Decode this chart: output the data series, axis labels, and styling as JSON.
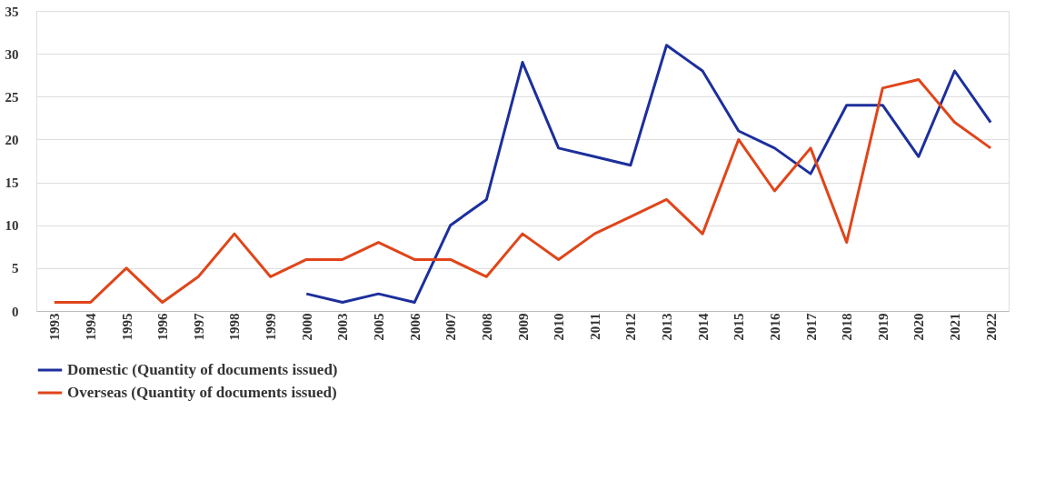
{
  "chart_data": {
    "type": "line",
    "categories": [
      "1993",
      "1994",
      "1995",
      "1996",
      "1997",
      "1998",
      "1999",
      "2000",
      "2003",
      "2005",
      "2006",
      "2007",
      "2008",
      "2009",
      "2010",
      "2011",
      "2012",
      "2013",
      "2014",
      "2015",
      "2016",
      "2017",
      "2018",
      "2019",
      "2020",
      "2021",
      "2022"
    ],
    "series": [
      {
        "name": "Domestic  (Quantity of documents issued)",
        "color": "#1c2f9c",
        "values": [
          null,
          null,
          null,
          null,
          null,
          null,
          null,
          2,
          1,
          2,
          1,
          10,
          13,
          29,
          19,
          18,
          17,
          31,
          28,
          21,
          19,
          16,
          24,
          24,
          18,
          28,
          22
        ]
      },
      {
        "name": "Overseas (Quantity of documents issued)",
        "color": "#e0451a",
        "values": [
          1,
          1,
          5,
          1,
          4,
          9,
          4,
          6,
          6,
          8,
          6,
          6,
          4,
          9,
          6,
          9,
          11,
          13,
          9,
          20,
          14,
          19,
          8,
          26,
          27,
          22,
          19
        ]
      }
    ],
    "ylim": [
      0,
      35
    ],
    "yticks": [
      0,
      5,
      10,
      15,
      20,
      25,
      30,
      35
    ],
    "grid": "y",
    "legend": "bottom"
  }
}
